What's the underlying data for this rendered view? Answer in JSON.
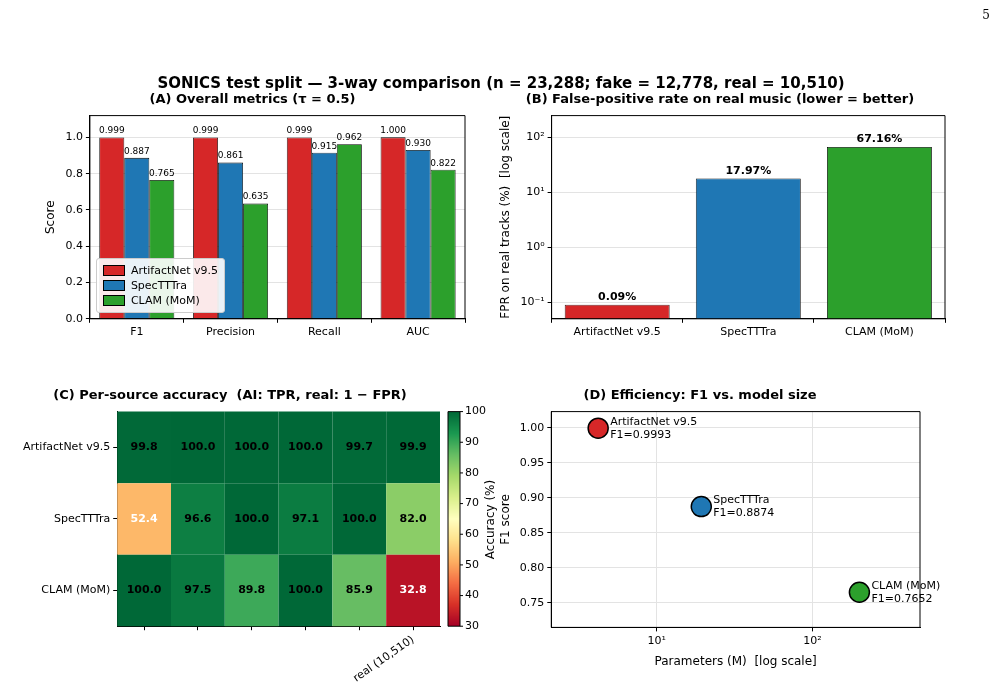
{
  "chart_data": [
    {
      "type": "other",
      "title": "SONICS test split — 3-way comparison  (n = 23,288;  fake = 12,778,  real = 10,510)",
      "annotations": [
        "5"
      ]
    },
    {
      "type": "bar",
      "title": "(A) Overall metrics (τ = 0.5)",
      "categories": [
        "F1",
        "Precision",
        "Recall",
        "AUC"
      ],
      "series": [
        {
          "name": "ArtifactNet v9.5",
          "color": "#d62728",
          "values": [
            0.999,
            0.999,
            0.999,
            1.0
          ],
          "value_labels": [
            "0.999",
            "0.999",
            "0.999",
            "1.000"
          ]
        },
        {
          "name": "SpecTTTra",
          "color": "#1f77b4",
          "values": [
            0.887,
            0.861,
            0.915,
            0.93
          ],
          "value_labels": [
            "0.887",
            "0.861",
            "0.915",
            "0.930"
          ]
        },
        {
          "name": "CLAM (MoM)",
          "color": "#2ca02c",
          "values": [
            0.765,
            0.635,
            0.962,
            0.822
          ],
          "value_labels": [
            "0.765",
            "0.635",
            "0.962",
            "0.822"
          ]
        }
      ],
      "ylabel": "Score",
      "ylim": [
        0,
        1.12
      ],
      "yticks": [
        {
          "value": 0,
          "label": "0.0"
        },
        0.2,
        0.4,
        0.6,
        0.8,
        {
          "value": 1,
          "label": "1.0"
        }
      ],
      "grid": "y",
      "legend": "bottom left"
    },
    {
      "type": "bar",
      "title": "(B) False-positive rate on real music (lower = better)",
      "categories": [
        "ArtifactNet v9.5",
        "SpecTTTra",
        "CLAM (MoM)"
      ],
      "values": [
        0.09,
        17.97,
        67.16
      ],
      "colors": [
        "#d62728",
        "#1f77b4",
        "#2ca02c"
      ],
      "value_labels": [
        "0.09%",
        "17.97%",
        "67.16%"
      ],
      "ylabel": "FPR on real tracks (%)  [log scale]",
      "log": "y",
      "ylim": [
        0.05,
        250
      ],
      "yticks": [
        {
          "value": 0.1,
          "label": "10⁻¹"
        },
        {
          "value": 1,
          "label": "10⁰"
        },
        {
          "value": 10,
          "label": "10¹"
        },
        {
          "value": 100,
          "label": "10²"
        }
      ],
      "grid": "y"
    },
    {
      "type": "heatmap",
      "title": "(C) Per-source accuracy  (AI: TPR, real: 1 − FPR)",
      "categories": [
        null,
        null,
        null,
        null,
        null,
        "real (10,510)"
      ],
      "y_categories": [
        "ArtifactNet v9.5",
        "SpecTTTra",
        "CLAM (MoM)"
      ],
      "cells": [
        [
          99.8,
          100,
          100,
          100,
          99.7,
          99.9
        ],
        [
          52.4,
          96.6,
          100,
          97.1,
          100,
          82
        ],
        [
          100,
          97.5,
          89.8,
          100,
          85.9,
          32.8
        ]
      ],
      "cell_labels": [
        [
          "99.8",
          "100.0",
          "100.0",
          "100.0",
          "99.7",
          "99.9"
        ],
        [
          "52.4",
          "96.6",
          "100.0",
          "97.1",
          "100.0",
          "82.0"
        ],
        [
          "100.0",
          "97.5",
          "89.8",
          "100.0",
          "85.9",
          "32.8"
        ]
      ],
      "clim": [
        30,
        100
      ],
      "cticks": [
        30,
        40,
        50,
        60,
        70,
        80,
        90,
        100
      ]
    },
    {
      "type": "scatter",
      "title": "(D) Efficiency: F1 vs. model size",
      "series": [
        {
          "name": "ArtifactNet v9.5",
          "color": "#d62728",
          "x": [
            4.2
          ],
          "values": [
            0.9993
          ],
          "value_labels": [
            "F1=0.9993"
          ]
        },
        {
          "name": "SpecTTTra",
          "color": "#1f77b4",
          "x": [
            19.3
          ],
          "values": [
            0.8874
          ],
          "value_labels": [
            "F1=0.8874"
          ]
        },
        {
          "name": "CLAM (MoM)",
          "color": "#2ca02c",
          "x": [
            200
          ],
          "values": [
            0.7652
          ],
          "value_labels": [
            "F1=0.7652"
          ]
        }
      ],
      "xlabel": "Parameters (M)  [log scale]",
      "ylabel": "F1 score",
      "annotations": [
        "Accuracy (%)"
      ],
      "log": "x",
      "xlim": [
        2.1,
        490
      ],
      "xticks": [
        {
          "value": 10,
          "label": "10¹"
        },
        {
          "value": 100,
          "label": "10²"
        }
      ],
      "ylim": [
        0.715,
        1.023
      ],
      "yticks": [
        {
          "value": 0.75,
          "label": "0.75"
        },
        {
          "value": 0.8,
          "label": "0.80"
        },
        {
          "value": 0.85,
          "label": "0.85"
        },
        {
          "value": 0.9,
          "label": "0.90"
        },
        {
          "value": 0.95,
          "label": "0.95"
        },
        {
          "value": 1,
          "label": "1.00"
        }
      ],
      "grid": true,
      "marker": "circle"
    }
  ]
}
